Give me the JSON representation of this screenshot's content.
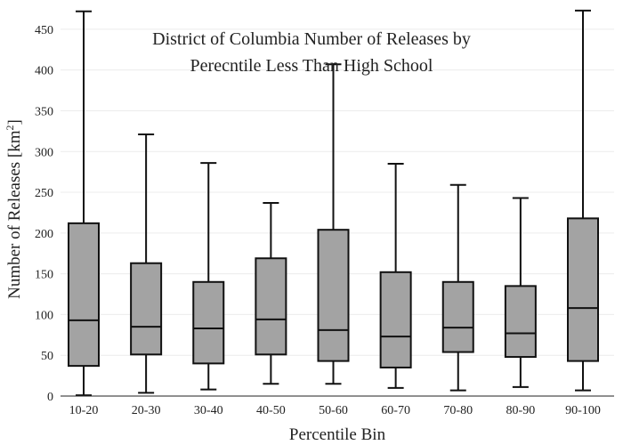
{
  "chart_data": {
    "type": "box",
    "title_lines": [
      "District of Columbia Number of Releases by",
      "Perecntile Less Than High School"
    ],
    "xlabel": "Percentile Bin",
    "ylabel_main": "Number of Releases  [km",
    "ylabel_sup": "2",
    "ylabel_close": "]",
    "ylim": [
      0,
      475
    ],
    "yticks": [
      0,
      50,
      100,
      150,
      200,
      250,
      300,
      350,
      400,
      450
    ],
    "grid": true,
    "box_fill": "#a3a3a3",
    "line_color": "#111111",
    "categories": [
      "10-20",
      "20-30",
      "30-40",
      "40-50",
      "50-60",
      "60-70",
      "70-80",
      "80-90",
      "90-100"
    ],
    "boxes": [
      {
        "min": 1,
        "q1": 37,
        "median": 93,
        "q3": 212,
        "max": 472
      },
      {
        "min": 4,
        "q1": 51,
        "median": 85,
        "q3": 163,
        "max": 321
      },
      {
        "min": 8,
        "q1": 40,
        "median": 83,
        "q3": 140,
        "max": 286
      },
      {
        "min": 15,
        "q1": 51,
        "median": 94,
        "q3": 169,
        "max": 237
      },
      {
        "min": 15,
        "q1": 43,
        "median": 81,
        "q3": 204,
        "max": 407
      },
      {
        "min": 10,
        "q1": 35,
        "median": 73,
        "q3": 152,
        "max": 285
      },
      {
        "min": 7,
        "q1": 54,
        "median": 84,
        "q3": 140,
        "max": 259
      },
      {
        "min": 11,
        "q1": 48,
        "median": 77,
        "q3": 135,
        "max": 243
      },
      {
        "min": 7,
        "q1": 43,
        "median": 108,
        "q3": 218,
        "max": 473
      }
    ]
  }
}
